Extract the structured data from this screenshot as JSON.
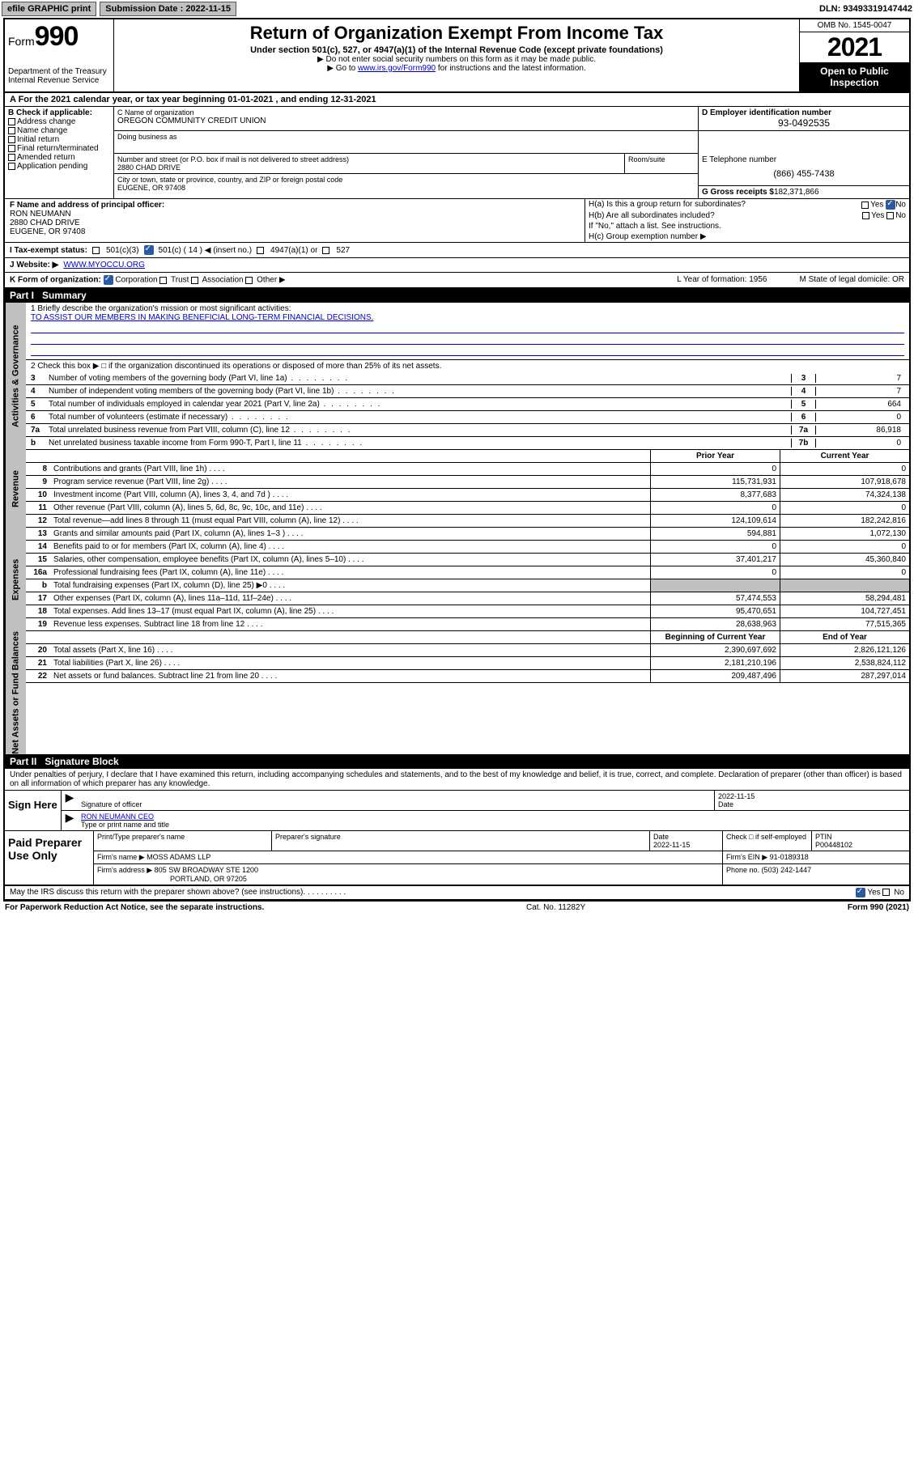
{
  "topbar": {
    "efile": "efile GRAPHIC print",
    "submission_label": "Submission Date : 2022-11-15",
    "dln": "DLN: 93493319147442"
  },
  "header": {
    "form_prefix": "Form",
    "form_no": "990",
    "dept": "Department of the Treasury",
    "irs": "Internal Revenue Service",
    "title": "Return of Organization Exempt From Income Tax",
    "sub1": "Under section 501(c), 527, or 4947(a)(1) of the Internal Revenue Code (except private foundations)",
    "sub2a": "▶ Do not enter social security numbers on this form as it may be made public.",
    "sub2b_pre": "▶ Go to ",
    "sub2b_link": "www.irs.gov/Form990",
    "sub2b_post": " for instructions and the latest information.",
    "omb": "OMB No. 1545-0047",
    "year": "2021",
    "otp": "Open to Public Inspection"
  },
  "row_a": "A For the 2021 calendar year, or tax year beginning 01-01-2021   , and ending 12-31-2021",
  "col_b": {
    "lab": "B Check if applicable:",
    "o1": "Address change",
    "o2": "Name change",
    "o3": "Initial return",
    "o4": "Final return/terminated",
    "o5": "Amended return",
    "o6": "Application pending"
  },
  "c": {
    "lab": "C Name of organization",
    "name": "OREGON COMMUNITY CREDIT UNION",
    "dba_lab": "Doing business as",
    "addr_lab": "Number and street (or P.O. box if mail is not delivered to street address)",
    "addr": "2880 CHAD DRIVE",
    "room_lab": "Room/suite",
    "city_lab": "City or town, state or province, country, and ZIP or foreign postal code",
    "city": "EUGENE, OR  97408"
  },
  "d": {
    "lab": "D Employer identification number",
    "val": "93-0492535"
  },
  "e": {
    "lab": "E Telephone number",
    "val": "(866) 455-7438"
  },
  "g": {
    "lab": "G Gross receipts $",
    "val": "182,371,866"
  },
  "f": {
    "lab": "F Name and address of principal officer:",
    "name": "RON NEUMANN",
    "addr1": "2880 CHAD DRIVE",
    "addr2": "EUGENE, OR  97408"
  },
  "h": {
    "a": "H(a)  Is this a group return for subordinates?",
    "b": "H(b)  Are all subordinates included?",
    "b2": "If \"No,\" attach a list. See instructions.",
    "c": "H(c)  Group exemption number ▶",
    "yes": "Yes",
    "no": "No"
  },
  "i": {
    "lab": "I   Tax-exempt status:",
    "o1": "501(c)(3)",
    "o2a": "501(c) ( 14 ) ◀ (insert no.)",
    "o3": "4947(a)(1) or",
    "o4": "527"
  },
  "j": {
    "lab": "J   Website: ▶",
    "val": "WWW.MYOCCU.ORG"
  },
  "k": {
    "lab": "K Form of organization:",
    "o1": "Corporation",
    "o2": "Trust",
    "o3": "Association",
    "o4": "Other ▶",
    "l": "L Year of formation: 1956",
    "m": "M State of legal domicile: OR"
  },
  "part1": {
    "hdr": "Part I",
    "title": "Summary",
    "l1a": "1  Briefly describe the organization's mission or most significant activities:",
    "l1b": "TO ASSIST OUR MEMBERS IN MAKING BENEFICIAL LONG-TERM FINANCIAL DECISIONS.",
    "l2": "2  Check this box ▶ □  if the organization discontinued its operations or disposed of more than 25% of its net assets.",
    "rows_gov": [
      {
        "n": "3",
        "t": "Number of voting members of the governing body (Part VI, line 1a)",
        "c": "3",
        "v": "7"
      },
      {
        "n": "4",
        "t": "Number of independent voting members of the governing body (Part VI, line 1b)",
        "c": "4",
        "v": "7"
      },
      {
        "n": "5",
        "t": "Total number of individuals employed in calendar year 2021 (Part V, line 2a)",
        "c": "5",
        "v": "664"
      },
      {
        "n": "6",
        "t": "Total number of volunteers (estimate if necessary)",
        "c": "6",
        "v": "0"
      },
      {
        "n": "7a",
        "t": "Total unrelated business revenue from Part VIII, column (C), line 12",
        "c": "7a",
        "v": "86,918"
      },
      {
        "n": "b",
        "t": "Net unrelated business taxable income from Form 990-T, Part I, line 11",
        "c": "7b",
        "v": "0"
      }
    ],
    "hdr_prior": "Prior Year",
    "hdr_curr": "Current Year",
    "rows_rev": [
      {
        "n": "8",
        "t": "Contributions and grants (Part VIII, line 1h)",
        "p": "0",
        "c": "0"
      },
      {
        "n": "9",
        "t": "Program service revenue (Part VIII, line 2g)",
        "p": "115,731,931",
        "c": "107,918,678"
      },
      {
        "n": "10",
        "t": "Investment income (Part VIII, column (A), lines 3, 4, and 7d )",
        "p": "8,377,683",
        "c": "74,324,138"
      },
      {
        "n": "11",
        "t": "Other revenue (Part VIII, column (A), lines 5, 6d, 8c, 9c, 10c, and 11e)",
        "p": "0",
        "c": "0"
      },
      {
        "n": "12",
        "t": "Total revenue—add lines 8 through 11 (must equal Part VIII, column (A), line 12)",
        "p": "124,109,614",
        "c": "182,242,816"
      }
    ],
    "rows_exp": [
      {
        "n": "13",
        "t": "Grants and similar amounts paid (Part IX, column (A), lines 1–3 )",
        "p": "594,881",
        "c": "1,072,130"
      },
      {
        "n": "14",
        "t": "Benefits paid to or for members (Part IX, column (A), line 4)",
        "p": "0",
        "c": "0"
      },
      {
        "n": "15",
        "t": "Salaries, other compensation, employee benefits (Part IX, column (A), lines 5–10)",
        "p": "37,401,217",
        "c": "45,360,840"
      },
      {
        "n": "16a",
        "t": "Professional fundraising fees (Part IX, column (A), line 11e)",
        "p": "0",
        "c": "0"
      },
      {
        "n": "b",
        "t": "Total fundraising expenses (Part IX, column (D), line 25) ▶0",
        "p": "",
        "c": "",
        "shade": true
      },
      {
        "n": "17",
        "t": "Other expenses (Part IX, column (A), lines 11a–11d, 11f–24e)",
        "p": "57,474,553",
        "c": "58,294,481"
      },
      {
        "n": "18",
        "t": "Total expenses. Add lines 13–17 (must equal Part IX, column (A), line 25)",
        "p": "95,470,651",
        "c": "104,727,451"
      },
      {
        "n": "19",
        "t": "Revenue less expenses. Subtract line 18 from line 12",
        "p": "28,638,963",
        "c": "77,515,365"
      }
    ],
    "hdr_boy": "Beginning of Current Year",
    "hdr_eoy": "End of Year",
    "rows_net": [
      {
        "n": "20",
        "t": "Total assets (Part X, line 16)",
        "p": "2,390,697,692",
        "c": "2,826,121,126"
      },
      {
        "n": "21",
        "t": "Total liabilities (Part X, line 26)",
        "p": "2,181,210,196",
        "c": "2,538,824,112"
      },
      {
        "n": "22",
        "t": "Net assets or fund balances. Subtract line 21 from line 20",
        "p": "209,487,496",
        "c": "287,297,014"
      }
    ]
  },
  "part2": {
    "hdr": "Part II",
    "title": "Signature Block",
    "intro": "Under penalties of perjury, I declare that I have examined this return, including accompanying schedules and statements, and to the best of my knowledge and belief, it is true, correct, and complete. Declaration of preparer (other than officer) is based on all information of which preparer has any knowledge.",
    "sign_here": "Sign Here",
    "sig_lab": "Signature of officer",
    "date_lab": "Date",
    "sig_date": "2022-11-15",
    "name_lab": "Type or print name and title",
    "name_val": "RON NEUMANN CEO",
    "paid": "Paid Preparer Use Only",
    "p_name_lab": "Print/Type preparer's name",
    "p_sig_lab": "Preparer's signature",
    "p_date": "Date\n2022-11-15",
    "p_check": "Check □ if self-employed",
    "ptin_lab": "PTIN",
    "ptin": "P00448102",
    "firm_name_lab": "Firm's name   ▶",
    "firm_name": "MOSS ADAMS LLP",
    "firm_ein_lab": "Firm's EIN ▶",
    "firm_ein": "91-0189318",
    "firm_addr_lab": "Firm's address ▶",
    "firm_addr1": "805 SW BROADWAY STE 1200",
    "firm_addr2": "PORTLAND, OR  97205",
    "phone_lab": "Phone no.",
    "phone": "(503) 242-1447",
    "may": "May the IRS discuss this return with the preparer shown above? (see instructions)",
    "yes": "Yes",
    "no": "No"
  },
  "footer": {
    "l": "For Paperwork Reduction Act Notice, see the separate instructions.",
    "m": "Cat. No. 11282Y",
    "r": "Form 990 (2021)"
  },
  "tabs": {
    "gov": "Activities & Governance",
    "rev": "Revenue",
    "exp": "Expenses",
    "net": "Net Assets or Fund Balances"
  }
}
